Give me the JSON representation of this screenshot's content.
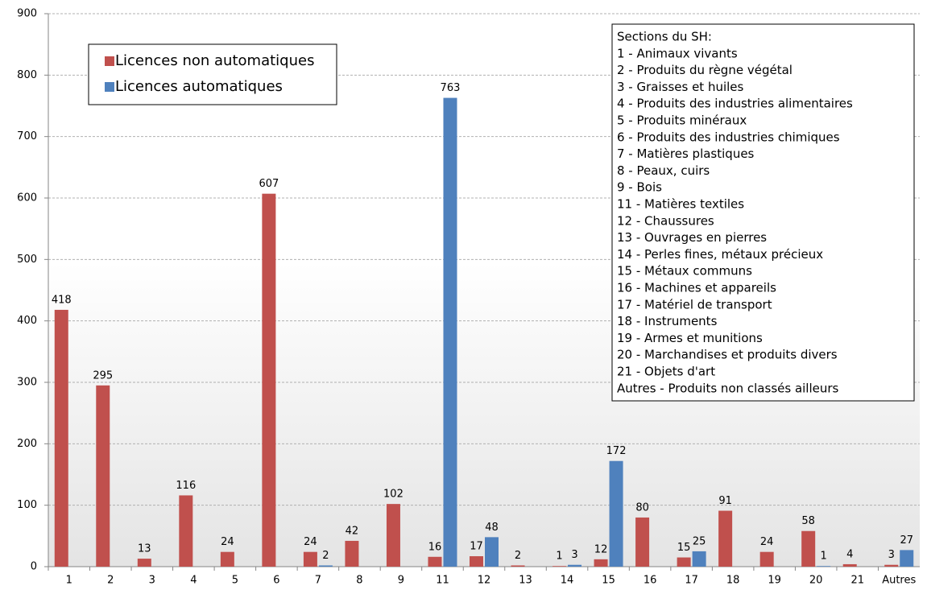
{
  "chart_data": {
    "type": "bar",
    "categories": [
      "1",
      "2",
      "3",
      "4",
      "5",
      "6",
      "7",
      "8",
      "9",
      "11",
      "12",
      "13",
      "14",
      "15",
      "16",
      "17",
      "18",
      "19",
      "20",
      "21",
      "Autres"
    ],
    "series": [
      {
        "name": "Licences non automatiques",
        "color": "#c0504d",
        "values": [
          418,
          295,
          13,
          116,
          24,
          607,
          24,
          42,
          102,
          16,
          17,
          2,
          1,
          12,
          80,
          15,
          91,
          24,
          58,
          4,
          3
        ]
      },
      {
        "name": "Licences automatiques",
        "color": "#4f81bd",
        "values": [
          null,
          null,
          null,
          null,
          null,
          null,
          2,
          null,
          null,
          763,
          48,
          null,
          3,
          172,
          null,
          25,
          null,
          null,
          1,
          null,
          27
        ]
      }
    ],
    "ylim": [
      0,
      900
    ],
    "yticks": [
      0,
      100,
      200,
      300,
      400,
      500,
      600,
      700,
      800,
      900
    ],
    "grid": true,
    "legend": "upper left",
    "sections": {
      "title": "Sections du SH:",
      "items": [
        "1 - Animaux vivants",
        "2 - Produits du règne végétal",
        "3 - Graisses et huiles",
        "4 - Produits des industries alimentaires",
        "5 - Produits minéraux",
        "6 - Produits des industries chimiques",
        "7 - Matières plastiques",
        "8 - Peaux, cuirs",
        "9 - Bois",
        "11 - Matières textiles",
        "12 - Chaussures",
        "13 - Ouvrages en pierres",
        "14 - Perles fines, métaux précieux",
        "15 - Métaux communs",
        "16 - Machines et appareils",
        "17 - Matériel de transport",
        "18 - Instruments",
        "19 - Armes et munitions",
        "20 - Marchandises et produits divers",
        "21 - Objets d'art",
        "Autres - Produits non classés ailleurs"
      ]
    }
  }
}
